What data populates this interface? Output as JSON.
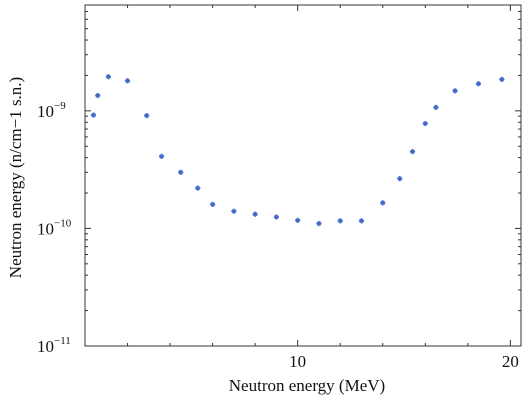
{
  "chart_data": {
    "type": "scatter",
    "xlabel": "Neutron energy (MeV)",
    "ylabel": "Neutron energy (n/cm−1 s.n.)",
    "xlim": [
      0,
      20.5
    ],
    "ylim": [
      1e-11,
      1e-08
    ],
    "yscale": "log",
    "grid": false,
    "marker_color": "#4169c8",
    "x_ticks": [
      {
        "value": 10,
        "label": "10"
      },
      {
        "value": 20,
        "label": "20"
      }
    ],
    "y_ticks": [
      {
        "value": 1e-09,
        "base": "10",
        "exp": "−9"
      },
      {
        "value": 1e-10,
        "base": "10",
        "exp": "−10"
      },
      {
        "value": 1e-11,
        "base": "10",
        "exp": "−11"
      }
    ],
    "series": [
      {
        "x": [
          0.4,
          0.6,
          1.1,
          2.0,
          2.9,
          3.6,
          4.5,
          5.3,
          6.0,
          7.0,
          8.0,
          9.0,
          10.0,
          11.0,
          12.0,
          13.0,
          14.0,
          14.8,
          15.4,
          16.0,
          16.5,
          17.4,
          18.5,
          19.6
        ],
        "y": [
          9.2e-10,
          1.35e-09,
          1.95e-09,
          1.8e-09,
          9.1e-10,
          4.1e-10,
          3e-10,
          2.2e-10,
          1.6e-10,
          1.4e-10,
          1.32e-10,
          1.25e-10,
          1.17e-10,
          1.1e-10,
          1.16e-10,
          1.16e-10,
          1.65e-10,
          2.65e-10,
          4.5e-10,
          7.8e-10,
          1.07e-09,
          1.48e-09,
          1.7e-09,
          1.85e-09
        ]
      }
    ]
  }
}
